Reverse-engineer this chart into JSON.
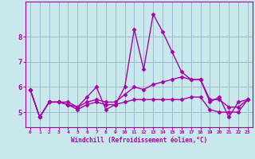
{
  "xlabel": "Windchill (Refroidissement éolien,°C)",
  "x_hours": [
    0,
    1,
    2,
    3,
    4,
    5,
    6,
    7,
    8,
    9,
    10,
    11,
    12,
    13,
    14,
    15,
    16,
    17,
    18,
    19,
    20,
    21,
    22,
    23
  ],
  "line1": [
    5.9,
    4.8,
    5.4,
    5.4,
    5.3,
    5.2,
    5.6,
    6.0,
    5.1,
    5.3,
    6.0,
    8.3,
    6.7,
    8.9,
    8.2,
    7.4,
    6.6,
    6.3,
    6.3,
    5.4,
    5.6,
    4.8,
    5.4,
    5.5
  ],
  "line2": [
    5.9,
    4.8,
    5.4,
    5.4,
    5.3,
    5.1,
    5.3,
    5.4,
    5.3,
    5.3,
    5.4,
    5.5,
    5.5,
    5.5,
    5.5,
    5.5,
    5.5,
    5.6,
    5.6,
    5.1,
    5.0,
    5.0,
    5.0,
    5.5
  ],
  "line3": [
    5.9,
    4.8,
    5.4,
    5.4,
    5.4,
    5.2,
    5.4,
    5.5,
    5.4,
    5.4,
    5.7,
    6.0,
    5.9,
    6.1,
    6.2,
    6.3,
    6.4,
    6.3,
    6.3,
    5.5,
    5.5,
    5.2,
    5.2,
    5.5
  ],
  "line_color": "#aa00aa",
  "bg_color": "#c8e8ec",
  "grid_color": "#99bbcc",
  "ylim": [
    4.4,
    9.4
  ],
  "yticks": [
    5,
    6,
    7,
    8
  ],
  "marker": "D",
  "marker_size": 2.5,
  "linewidth": 1.0
}
